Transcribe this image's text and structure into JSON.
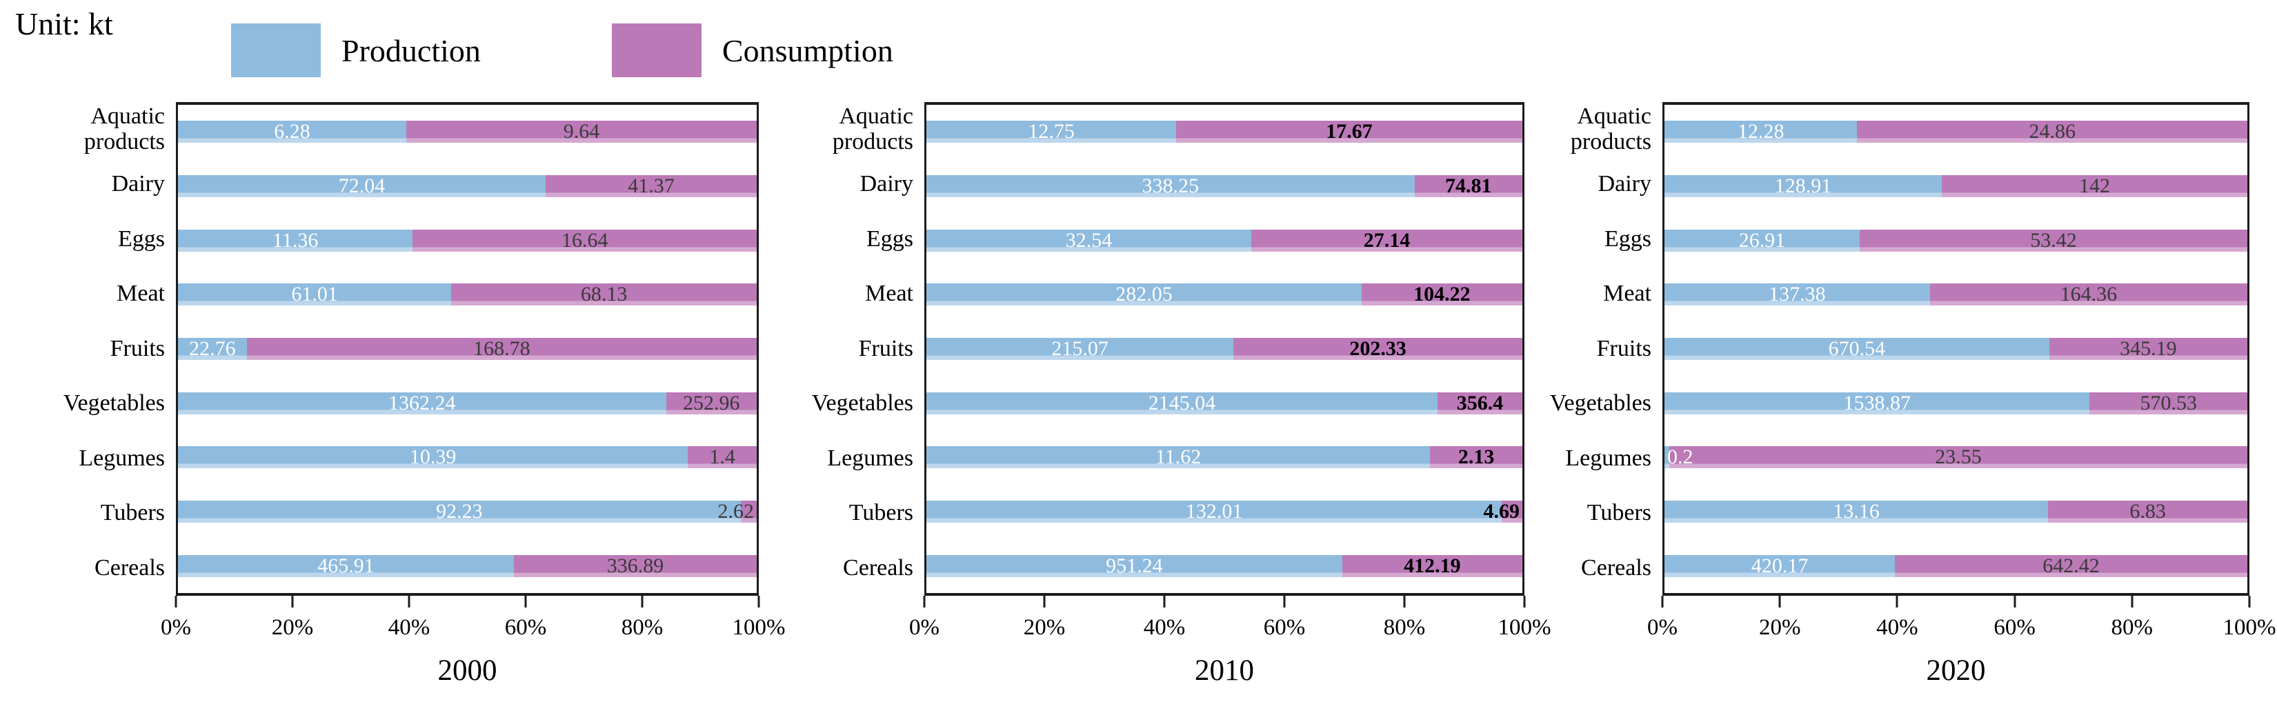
{
  "unit_label": "Unit: kt",
  "colors": {
    "production": "#8FBBDE",
    "production_edge_light": "#BCD7ED",
    "consumption": "#BC79B8",
    "consumption_edge_light": "#D5A8D2",
    "frame": "#1c1c1c",
    "production_value_text": "#FFFFFF"
  },
  "legend": {
    "items": [
      {
        "label": "Production",
        "color_key": "production"
      },
      {
        "label": "Consumption",
        "color_key": "consumption"
      }
    ]
  },
  "chart_data": [
    {
      "type": "bar",
      "orientation": "horizontal",
      "stacked_100pct": true,
      "title": "2000",
      "xlabel": "",
      "ylabel": "",
      "xlim": [
        0,
        100
      ],
      "x_ticks": [
        "0%",
        "20%",
        "40%",
        "60%",
        "80%",
        "100%"
      ],
      "grid": false,
      "categories": [
        "Aquatic\nproducts",
        "Dairy",
        "Eggs",
        "Meat",
        "Fruits",
        "Vegetables",
        "Legumes",
        "Tubers",
        "Cereals"
      ],
      "series": [
        {
          "name": "Production",
          "values": [
            6.28,
            72.04,
            11.36,
            61.01,
            22.76,
            1362.24,
            10.39,
            92.23,
            465.91
          ]
        },
        {
          "name": "Consumption",
          "values": [
            9.64,
            41.37,
            16.64,
            68.13,
            168.78,
            252.96,
            1.4,
            2.62,
            336.89
          ]
        }
      ],
      "consumption_label_color": "#3A3A3A",
      "consumption_label_bold": false
    },
    {
      "type": "bar",
      "orientation": "horizontal",
      "stacked_100pct": true,
      "title": "2010",
      "xlabel": "",
      "ylabel": "",
      "xlim": [
        0,
        100
      ],
      "x_ticks": [
        "0%",
        "20%",
        "40%",
        "60%",
        "80%",
        "100%"
      ],
      "grid": false,
      "categories": [
        "Aquatic\nproducts",
        "Dairy",
        "Eggs",
        "Meat",
        "Fruits",
        "Vegetables",
        "Legumes",
        "Tubers",
        "Cereals"
      ],
      "series": [
        {
          "name": "Production",
          "values": [
            12.75,
            338.25,
            32.54,
            282.05,
            215.07,
            2145.04,
            11.62,
            132.01,
            951.24
          ]
        },
        {
          "name": "Consumption",
          "values": [
            17.67,
            74.81,
            27.14,
            104.22,
            202.33,
            356.4,
            2.13,
            4.69,
            412.19
          ]
        }
      ],
      "consumption_label_color": "#000000",
      "consumption_label_bold": true
    },
    {
      "type": "bar",
      "orientation": "horizontal",
      "stacked_100pct": true,
      "title": "2020",
      "xlabel": "",
      "ylabel": "",
      "xlim": [
        0,
        100
      ],
      "x_ticks": [
        "0%",
        "20%",
        "40%",
        "60%",
        "80%",
        "100%"
      ],
      "grid": false,
      "categories": [
        "Aquatic\nproducts",
        "Dairy",
        "Eggs",
        "Meat",
        "Fruits",
        "Vegetables",
        "Legumes",
        "Tubers",
        "Cereals"
      ],
      "series": [
        {
          "name": "Production",
          "values": [
            12.28,
            128.91,
            26.91,
            137.38,
            670.54,
            1538.87,
            0.2,
            13.16,
            420.17
          ]
        },
        {
          "name": "Consumption",
          "values": [
            24.86,
            142,
            53.42,
            164.36,
            345.19,
            570.53,
            23.55,
            6.83,
            642.42
          ]
        }
      ],
      "consumption_label_color": "#3A3A3A",
      "consumption_label_bold": false
    }
  ]
}
